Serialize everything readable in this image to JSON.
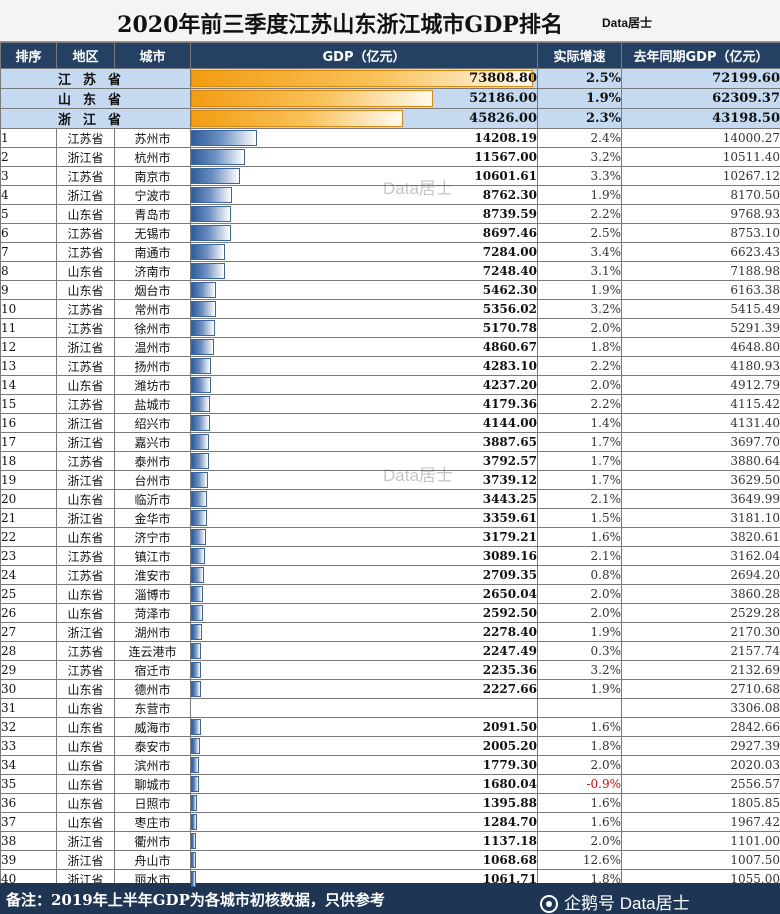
{
  "title": {
    "text": "2020年前三季度江苏山东浙江城市GDP排名",
    "brand": "Data居士"
  },
  "chart_data": {
    "type": "table",
    "columns": [
      "排序",
      "地区",
      "城市",
      "GDP（亿元）",
      "实际增速",
      "去年同期GDP（亿元）"
    ],
    "bar_max": 73808.8,
    "provinces": [
      {
        "name": "江苏省",
        "gdp": "73808.80",
        "growth": "2.5%",
        "prev": "72199.60"
      },
      {
        "name": "山东省",
        "gdp": "52186.00",
        "growth": "1.9%",
        "prev": "62309.37"
      },
      {
        "name": "浙江省",
        "gdp": "45826.00",
        "growth": "2.3%",
        "prev": "43198.50"
      }
    ],
    "cities": [
      {
        "rank": "1",
        "region": "江苏省",
        "city": "苏州市",
        "gdp": "14208.19",
        "growth": "2.4%",
        "prev": "14000.27"
      },
      {
        "rank": "2",
        "region": "浙江省",
        "city": "杭州市",
        "gdp": "11567.00",
        "growth": "3.2%",
        "prev": "10511.40"
      },
      {
        "rank": "3",
        "region": "江苏省",
        "city": "南京市",
        "gdp": "10601.61",
        "growth": "3.3%",
        "prev": "10267.12"
      },
      {
        "rank": "4",
        "region": "浙江省",
        "city": "宁波市",
        "gdp": "8762.30",
        "growth": "1.9%",
        "prev": "8170.50"
      },
      {
        "rank": "5",
        "region": "山东省",
        "city": "青岛市",
        "gdp": "8739.59",
        "growth": "2.2%",
        "prev": "9768.93"
      },
      {
        "rank": "6",
        "region": "江苏省",
        "city": "无锡市",
        "gdp": "8697.46",
        "growth": "2.5%",
        "prev": "8753.10"
      },
      {
        "rank": "7",
        "region": "江苏省",
        "city": "南通市",
        "gdp": "7284.00",
        "growth": "3.4%",
        "prev": "6623.43"
      },
      {
        "rank": "8",
        "region": "山东省",
        "city": "济南市",
        "gdp": "7248.40",
        "growth": "3.1%",
        "prev": "7188.98"
      },
      {
        "rank": "9",
        "region": "山东省",
        "city": "烟台市",
        "gdp": "5462.30",
        "growth": "1.9%",
        "prev": "6163.38"
      },
      {
        "rank": "10",
        "region": "江苏省",
        "city": "常州市",
        "gdp": "5356.02",
        "growth": "3.2%",
        "prev": "5415.49"
      },
      {
        "rank": "11",
        "region": "江苏省",
        "city": "徐州市",
        "gdp": "5170.78",
        "growth": "2.0%",
        "prev": "5291.39"
      },
      {
        "rank": "12",
        "region": "浙江省",
        "city": "温州市",
        "gdp": "4860.67",
        "growth": "1.8%",
        "prev": "4648.80"
      },
      {
        "rank": "13",
        "region": "江苏省",
        "city": "扬州市",
        "gdp": "4283.10",
        "growth": "2.2%",
        "prev": "4180.93"
      },
      {
        "rank": "14",
        "region": "山东省",
        "city": "潍坊市",
        "gdp": "4237.20",
        "growth": "2.0%",
        "prev": "4912.79"
      },
      {
        "rank": "15",
        "region": "江苏省",
        "city": "盐城市",
        "gdp": "4179.36",
        "growth": "2.2%",
        "prev": "4115.42"
      },
      {
        "rank": "16",
        "region": "浙江省",
        "city": "绍兴市",
        "gdp": "4144.00",
        "growth": "1.4%",
        "prev": "4131.40"
      },
      {
        "rank": "17",
        "region": "浙江省",
        "city": "嘉兴市",
        "gdp": "3887.65",
        "growth": "1.7%",
        "prev": "3697.70"
      },
      {
        "rank": "18",
        "region": "江苏省",
        "city": "泰州市",
        "gdp": "3792.57",
        "growth": "1.7%",
        "prev": "3880.64"
      },
      {
        "rank": "19",
        "region": "浙江省",
        "city": "台州市",
        "gdp": "3739.12",
        "growth": "1.7%",
        "prev": "3629.50"
      },
      {
        "rank": "20",
        "region": "山东省",
        "city": "临沂市",
        "gdp": "3443.25",
        "growth": "2.1%",
        "prev": "3649.99"
      },
      {
        "rank": "21",
        "region": "浙江省",
        "city": "金华市",
        "gdp": "3359.61",
        "growth": "1.5%",
        "prev": "3181.10"
      },
      {
        "rank": "22",
        "region": "山东省",
        "city": "济宁市",
        "gdp": "3179.21",
        "growth": "1.6%",
        "prev": "3820.61"
      },
      {
        "rank": "23",
        "region": "江苏省",
        "city": "镇江市",
        "gdp": "3089.16",
        "growth": "2.1%",
        "prev": "3162.04"
      },
      {
        "rank": "24",
        "region": "江苏省",
        "city": "淮安市",
        "gdp": "2709.35",
        "growth": "0.8%",
        "prev": "2694.20"
      },
      {
        "rank": "25",
        "region": "山东省",
        "city": "淄博市",
        "gdp": "2650.04",
        "growth": "2.0%",
        "prev": "3860.28"
      },
      {
        "rank": "26",
        "region": "山东省",
        "city": "菏泽市",
        "gdp": "2592.50",
        "growth": "2.0%",
        "prev": "2529.28"
      },
      {
        "rank": "27",
        "region": "浙江省",
        "city": "湖州市",
        "gdp": "2278.40",
        "growth": "1.9%",
        "prev": "2170.30"
      },
      {
        "rank": "28",
        "region": "江苏省",
        "city": "连云港市",
        "gdp": "2247.49",
        "growth": "0.3%",
        "prev": "2157.74"
      },
      {
        "rank": "29",
        "region": "江苏省",
        "city": "宿迁市",
        "gdp": "2235.36",
        "growth": "3.2%",
        "prev": "2132.69"
      },
      {
        "rank": "30",
        "region": "山东省",
        "city": "德州市",
        "gdp": "2227.66",
        "growth": "1.9%",
        "prev": "2710.68"
      },
      {
        "rank": "31",
        "region": "山东省",
        "city": "东营市",
        "gdp": "",
        "growth": "",
        "prev": "3306.08"
      },
      {
        "rank": "32",
        "region": "山东省",
        "city": "威海市",
        "gdp": "2091.50",
        "growth": "1.6%",
        "prev": "2842.66"
      },
      {
        "rank": "33",
        "region": "山东省",
        "city": "泰安市",
        "gdp": "2005.20",
        "growth": "1.8%",
        "prev": "2927.39"
      },
      {
        "rank": "34",
        "region": "山东省",
        "city": "滨州市",
        "gdp": "1779.30",
        "growth": "2.0%",
        "prev": "2020.03"
      },
      {
        "rank": "35",
        "region": "山东省",
        "city": "聊城市",
        "gdp": "1680.04",
        "growth": "-0.9%",
        "prev": "2556.57"
      },
      {
        "rank": "36",
        "region": "山东省",
        "city": "日照市",
        "gdp": "1395.88",
        "growth": "1.6%",
        "prev": "1805.85"
      },
      {
        "rank": "37",
        "region": "山东省",
        "city": "枣庄市",
        "gdp": "1284.70",
        "growth": "1.6%",
        "prev": "1967.42"
      },
      {
        "rank": "38",
        "region": "浙江省",
        "city": "衢州市",
        "gdp": "1137.18",
        "growth": "2.0%",
        "prev": "1101.00"
      },
      {
        "rank": "39",
        "region": "浙江省",
        "city": "舟山市",
        "gdp": "1068.68",
        "growth": "12.6%",
        "prev": "1007.50"
      },
      {
        "rank": "40",
        "region": "浙江省",
        "city": "丽水市",
        "gdp": "1061.71",
        "growth": "1.8%",
        "prev": "1055.00"
      }
    ]
  },
  "watermark": "Data居士",
  "footer": {
    "note": "备注：2019年上半年GDP为各城市初核数据，只供参考",
    "brand": "企鹅号 Data居士"
  },
  "colors": {
    "header_bg": "#244062",
    "province_row_bg": "#c5d9f1",
    "city_bar": "#2f5d9a",
    "province_bar": "#f39c12",
    "negative": "#e00000"
  }
}
